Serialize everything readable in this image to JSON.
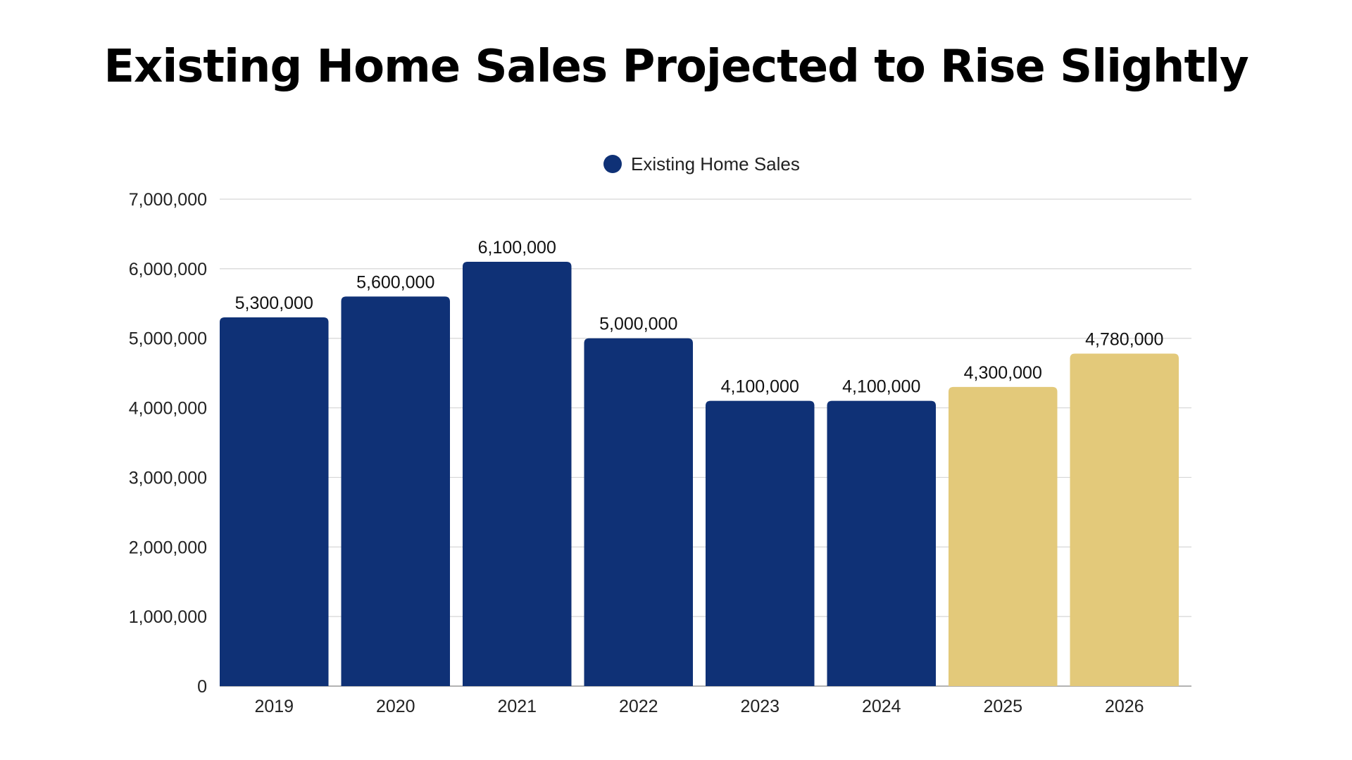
{
  "chart_data": {
    "type": "bar",
    "title": "Existing Home Sales Projected to Rise Slightly",
    "xlabel": "",
    "ylabel": "",
    "categories": [
      "2019",
      "2020",
      "2021",
      "2022",
      "2023",
      "2024",
      "2025",
      "2026"
    ],
    "series": [
      {
        "name": "Existing Home Sales",
        "values": [
          5300000,
          5600000,
          6100000,
          5000000,
          4100000,
          4100000,
          4300000,
          4780000
        ],
        "data_labels": [
          "5,300,000",
          "5,600,000",
          "6,100,000",
          "5,000,000",
          "4,100,000",
          "4,100,000",
          "4,300,000",
          "4,780,000"
        ]
      }
    ],
    "bar_colors": [
      "#0f3176",
      "#0f3176",
      "#0f3176",
      "#0f3176",
      "#0f3176",
      "#0f3176",
      "#e3c97a",
      "#e3c97a"
    ],
    "legend_color": "#0f3176",
    "legend_position": "top-center",
    "ylim": [
      0,
      7000000
    ],
    "y_ticks": [
      0,
      1000000,
      2000000,
      3000000,
      4000000,
      5000000,
      6000000,
      7000000
    ],
    "y_tick_labels": [
      "0",
      "1,000,000",
      "2,000,000",
      "3,000,000",
      "4,000,000",
      "5,000,000",
      "6,000,000",
      "7,000,000"
    ],
    "grid": true,
    "grid_color": "#d6d6d6"
  }
}
